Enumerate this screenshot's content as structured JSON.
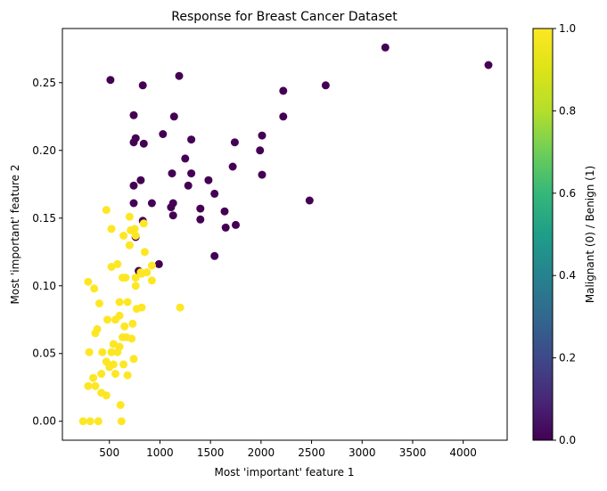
{
  "chart_data": {
    "type": "scatter",
    "title": "Response for Breast Cancer Dataset",
    "xlabel": "Most 'important' feature 1",
    "ylabel": "Most 'important' feature 2",
    "xlim": [
      35,
      4435
    ],
    "ylim": [
      -0.014,
      0.29
    ],
    "xticks": [
      500,
      1000,
      1500,
      2000,
      2500,
      3000,
      3500,
      4000
    ],
    "xtick_labels": [
      "500",
      "1000",
      "1500",
      "2000",
      "2500",
      "3000",
      "3500",
      "4000"
    ],
    "yticks": [
      0.0,
      0.05,
      0.1,
      0.15,
      0.2,
      0.25
    ],
    "ytick_labels": [
      "0.00",
      "0.05",
      "0.10",
      "0.15",
      "0.20",
      "0.25"
    ],
    "grid": false,
    "colorbar": {
      "label": "Malignant (0) / Benign (1)",
      "colormap": "viridis",
      "range": [
        0.0,
        1.0
      ],
      "ticks": [
        0.0,
        0.2,
        0.4,
        0.6,
        0.8,
        1.0
      ],
      "tick_labels": [
        "0.0",
        "0.2",
        "0.4",
        "0.6",
        "0.8",
        "1.0"
      ]
    },
    "colors": {
      "malignant": "#440154",
      "benign": "#fde725"
    },
    "series": [
      {
        "class_value": 0,
        "points": [
          [
            510,
            0.252
          ],
          [
            830,
            0.248
          ],
          [
            1190,
            0.255
          ],
          [
            3230,
            0.276
          ],
          [
            4250,
            0.263
          ],
          [
            2640,
            0.248
          ],
          [
            2220,
            0.244
          ],
          [
            2220,
            0.225
          ],
          [
            740,
            0.226
          ],
          [
            1140,
            0.225
          ],
          [
            1030,
            0.212
          ],
          [
            760,
            0.209
          ],
          [
            740,
            0.206
          ],
          [
            840,
            0.205
          ],
          [
            1310,
            0.208
          ],
          [
            2010,
            0.211
          ],
          [
            1250,
            0.194
          ],
          [
            1740,
            0.206
          ],
          [
            1990,
            0.2
          ],
          [
            1120,
            0.183
          ],
          [
            1310,
            0.183
          ],
          [
            1720,
            0.188
          ],
          [
            2010,
            0.182
          ],
          [
            740,
            0.174
          ],
          [
            810,
            0.178
          ],
          [
            1280,
            0.174
          ],
          [
            1480,
            0.178
          ],
          [
            1540,
            0.168
          ],
          [
            2480,
            0.163
          ],
          [
            740,
            0.161
          ],
          [
            920,
            0.161
          ],
          [
            1130,
            0.161
          ],
          [
            1110,
            0.158
          ],
          [
            1400,
            0.157
          ],
          [
            1640,
            0.155
          ],
          [
            1130,
            0.152
          ],
          [
            1400,
            0.149
          ],
          [
            1650,
            0.143
          ],
          [
            1750,
            0.145
          ],
          [
            830,
            0.148
          ],
          [
            760,
            0.136
          ],
          [
            1540,
            0.122
          ],
          [
            790,
            0.111
          ],
          [
            990,
            0.116
          ]
        ]
      },
      {
        "class_value": 1,
        "points": [
          [
            470,
            0.156
          ],
          [
            700,
            0.151
          ],
          [
            840,
            0.146
          ],
          [
            520,
            0.142
          ],
          [
            710,
            0.141
          ],
          [
            750,
            0.142
          ],
          [
            640,
            0.137
          ],
          [
            760,
            0.137
          ],
          [
            700,
            0.13
          ],
          [
            850,
            0.125
          ],
          [
            520,
            0.114
          ],
          [
            580,
            0.116
          ],
          [
            920,
            0.115
          ],
          [
            820,
            0.109
          ],
          [
            630,
            0.106
          ],
          [
            660,
            0.106
          ],
          [
            760,
            0.106
          ],
          [
            810,
            0.11
          ],
          [
            870,
            0.11
          ],
          [
            920,
            0.104
          ],
          [
            760,
            0.1
          ],
          [
            290,
            0.103
          ],
          [
            350,
            0.098
          ],
          [
            400,
            0.087
          ],
          [
            600,
            0.088
          ],
          [
            680,
            0.088
          ],
          [
            770,
            0.083
          ],
          [
            820,
            0.084
          ],
          [
            1200,
            0.084
          ],
          [
            600,
            0.078
          ],
          [
            480,
            0.075
          ],
          [
            560,
            0.075
          ],
          [
            730,
            0.072
          ],
          [
            650,
            0.07
          ],
          [
            380,
            0.068
          ],
          [
            360,
            0.065
          ],
          [
            630,
            0.062
          ],
          [
            540,
            0.057
          ],
          [
            600,
            0.055
          ],
          [
            670,
            0.062
          ],
          [
            720,
            0.061
          ],
          [
            520,
            0.051
          ],
          [
            580,
            0.051
          ],
          [
            300,
            0.051
          ],
          [
            430,
            0.051
          ],
          [
            740,
            0.046
          ],
          [
            470,
            0.044
          ],
          [
            500,
            0.04
          ],
          [
            540,
            0.042
          ],
          [
            640,
            0.042
          ],
          [
            420,
            0.035
          ],
          [
            560,
            0.035
          ],
          [
            340,
            0.032
          ],
          [
            680,
            0.034
          ],
          [
            290,
            0.026
          ],
          [
            360,
            0.026
          ],
          [
            420,
            0.021
          ],
          [
            470,
            0.019
          ],
          [
            610,
            0.012
          ],
          [
            240,
            0.0
          ],
          [
            310,
            0.0
          ],
          [
            390,
            0.0
          ],
          [
            620,
            0.0
          ]
        ]
      }
    ]
  }
}
